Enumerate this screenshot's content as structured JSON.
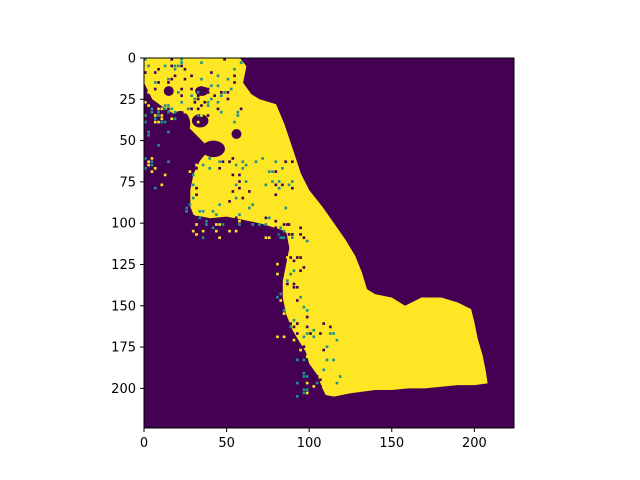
{
  "chart_data": {
    "type": "heatmap",
    "title": "",
    "xlabel": "",
    "ylabel": "",
    "colormap": "viridis",
    "colors": {
      "low": "#440154",
      "high": "#fde725",
      "speckle": "#21918c"
    },
    "grid": false,
    "legend": "none",
    "image_shape": [
      224,
      224
    ],
    "xlim": [
      0,
      224
    ],
    "ylim": [
      224,
      0
    ],
    "xticks": [
      0,
      50,
      100,
      150,
      200
    ],
    "yticks": [
      0,
      25,
      50,
      75,
      100,
      125,
      150,
      175,
      200
    ],
    "x_tick_labels": [
      "0",
      "50",
      "100",
      "150",
      "200"
    ],
    "y_tick_labels": [
      "0",
      "25",
      "50",
      "75",
      "100",
      "125",
      "150",
      "175",
      "200"
    ],
    "mask_outline": [
      [
        0,
        0
      ],
      [
        58,
        0
      ],
      [
        62,
        5
      ],
      [
        60,
        15
      ],
      [
        65,
        22
      ],
      [
        70,
        25
      ],
      [
        80,
        28
      ],
      [
        85,
        40
      ],
      [
        90,
        55
      ],
      [
        95,
        70
      ],
      [
        100,
        80
      ],
      [
        108,
        90
      ],
      [
        115,
        100
      ],
      [
        122,
        110
      ],
      [
        128,
        120
      ],
      [
        132,
        130
      ],
      [
        135,
        140
      ],
      [
        140,
        143
      ],
      [
        150,
        145
      ],
      [
        158,
        150
      ],
      [
        162,
        148
      ],
      [
        168,
        145
      ],
      [
        180,
        145
      ],
      [
        190,
        148
      ],
      [
        198,
        152
      ],
      [
        200,
        160
      ],
      [
        202,
        170
      ],
      [
        205,
        180
      ],
      [
        207,
        190
      ],
      [
        208,
        197
      ],
      [
        200,
        198
      ],
      [
        190,
        198
      ],
      [
        180,
        199
      ],
      [
        170,
        200
      ],
      [
        160,
        200
      ],
      [
        150,
        201
      ],
      [
        140,
        201
      ],
      [
        125,
        203
      ],
      [
        115,
        205
      ],
      [
        110,
        204
      ],
      [
        108,
        200
      ],
      [
        105,
        192
      ],
      [
        100,
        185
      ],
      [
        98,
        178
      ],
      [
        93,
        170
      ],
      [
        90,
        165
      ],
      [
        86,
        155
      ],
      [
        84,
        145
      ],
      [
        84,
        135
      ],
      [
        86,
        125
      ],
      [
        88,
        115
      ],
      [
        86,
        105
      ],
      [
        80,
        103
      ],
      [
        70,
        100
      ],
      [
        60,
        98
      ],
      [
        50,
        96
      ],
      [
        40,
        97
      ],
      [
        30,
        95
      ],
      [
        28,
        90
      ],
      [
        28,
        80
      ],
      [
        30,
        70
      ],
      [
        34,
        62
      ],
      [
        40,
        55
      ],
      [
        35,
        50
      ],
      [
        30,
        45
      ],
      [
        25,
        40
      ],
      [
        20,
        35
      ],
      [
        12,
        30
      ],
      [
        5,
        25
      ],
      [
        0,
        15
      ]
    ],
    "hole_regions": [
      {
        "cx": 42,
        "cy": 55,
        "rx": 7,
        "ry": 5
      },
      {
        "cx": 22,
        "cy": 40,
        "rx": 6,
        "ry": 8
      },
      {
        "cx": 34,
        "cy": 38,
        "rx": 5,
        "ry": 4
      },
      {
        "cx": 35,
        "cy": 20,
        "rx": 4,
        "ry": 3
      },
      {
        "cx": 15,
        "cy": 20,
        "rx": 3,
        "ry": 3
      },
      {
        "cx": 4,
        "cy": 45,
        "rx": 4,
        "ry": 10
      },
      {
        "cx": 56,
        "cy": 46,
        "rx": 3,
        "ry": 3
      }
    ]
  }
}
